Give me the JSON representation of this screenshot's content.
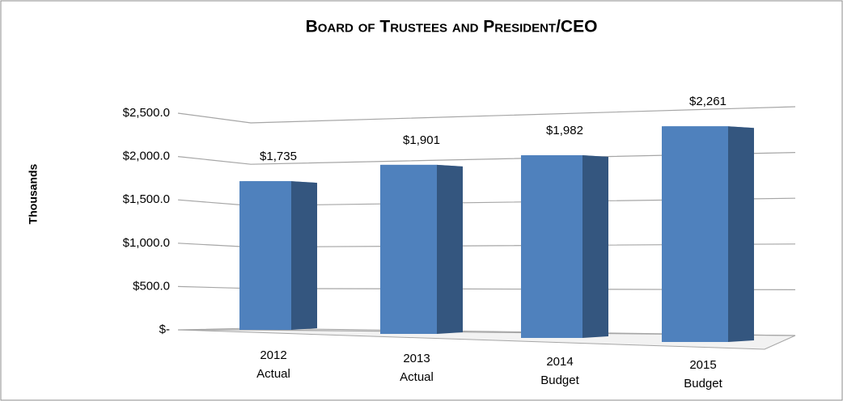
{
  "chart_data": {
    "type": "bar3d",
    "title": "Board of Trustees and President/CEO",
    "y_label": "Thousands",
    "categories": [
      [
        "2012",
        "Actual"
      ],
      [
        "2013",
        "Actual"
      ],
      [
        "2014",
        "Budget"
      ],
      [
        "2015",
        "Budget"
      ]
    ],
    "values": [
      1735,
      1901,
      1982,
      2261
    ],
    "value_labels": [
      "$1,735",
      "$1,901",
      "$1,982",
      "$2,261"
    ],
    "color": "#4f81bd",
    "ylim": [
      0,
      2500
    ],
    "yticks": [
      {
        "value": 0,
        "label": "$-"
      },
      {
        "value": 500,
        "label": "$500.0"
      },
      {
        "value": 1000,
        "label": "$1,000.0"
      },
      {
        "value": 1500,
        "label": "$1,500.0"
      },
      {
        "value": 2000,
        "label": "$2,000.0"
      },
      {
        "value": 2500,
        "label": "$2,500.0"
      }
    ],
    "grid": true
  }
}
